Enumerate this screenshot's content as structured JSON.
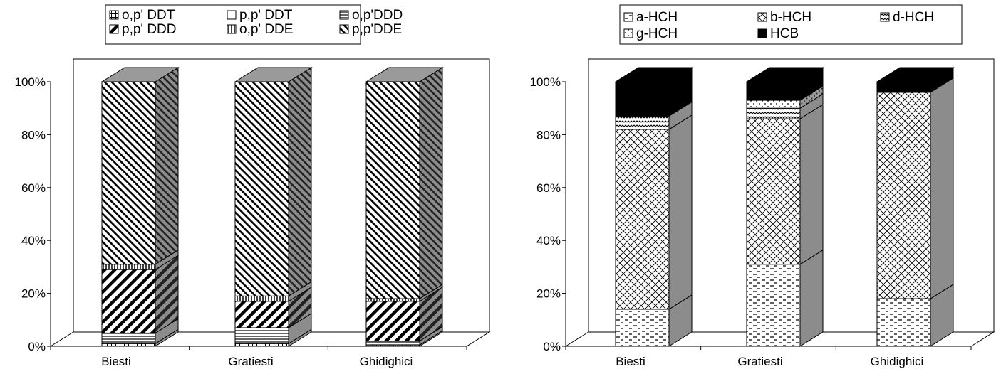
{
  "chart_data": [
    {
      "type": "bar",
      "stacked": "percent",
      "three_d": true,
      "categories": [
        "Biesti",
        "Gratiesti",
        "Ghidighici"
      ],
      "y_ticks": [
        "0%",
        "20%",
        "40%",
        "60%",
        "80%",
        "100%"
      ],
      "ylim": [
        0,
        100
      ],
      "legend_position": "top",
      "series": [
        {
          "name": "o,p' DDT",
          "pattern": "grid",
          "values": [
            1.0,
            1.0,
            0.5
          ]
        },
        {
          "name": "p,p' DDT",
          "pattern": "blank",
          "values": [
            0.0,
            0.0,
            0.0
          ]
        },
        {
          "name": "o,p'DDD",
          "pattern": "horizontal",
          "values": [
            4.0,
            6.0,
            1.5
          ]
        },
        {
          "name": "p,p' DDD",
          "pattern": "wide-downward-diagonal",
          "values": [
            24.0,
            10.0,
            15.0
          ]
        },
        {
          "name": "o,p' DDE",
          "pattern": "vertical",
          "values": [
            2.0,
            2.0,
            1.0
          ]
        },
        {
          "name": "p,p'DDE",
          "pattern": "narrow-upward-diagonal",
          "values": [
            69.0,
            81.0,
            82.0
          ]
        }
      ]
    },
    {
      "type": "bar",
      "stacked": "percent",
      "three_d": true,
      "categories": [
        "Biesti",
        "Gratiesti",
        "Ghidighici"
      ],
      "y_ticks": [
        "0%",
        "20%",
        "40%",
        "60%",
        "80%",
        "100%"
      ],
      "ylim": [
        0,
        100
      ],
      "legend_position": "top",
      "series": [
        {
          "name": "a-HCH",
          "pattern": "dashed-horizontal",
          "values": [
            14.0,
            31.0,
            18.0
          ]
        },
        {
          "name": "b-HCH",
          "pattern": "diagonal-cross",
          "values": [
            68.0,
            55.0,
            78.0
          ]
        },
        {
          "name": "d-HCH",
          "pattern": "zigzag",
          "values": [
            5.0,
            4.0,
            0.0
          ]
        },
        {
          "name": "g-HCH",
          "pattern": "dotted",
          "values": [
            0.0,
            3.0,
            0.0
          ]
        },
        {
          "name": "HCB",
          "pattern": "solid-black",
          "values": [
            13.0,
            7.0,
            4.0
          ]
        }
      ]
    }
  ]
}
